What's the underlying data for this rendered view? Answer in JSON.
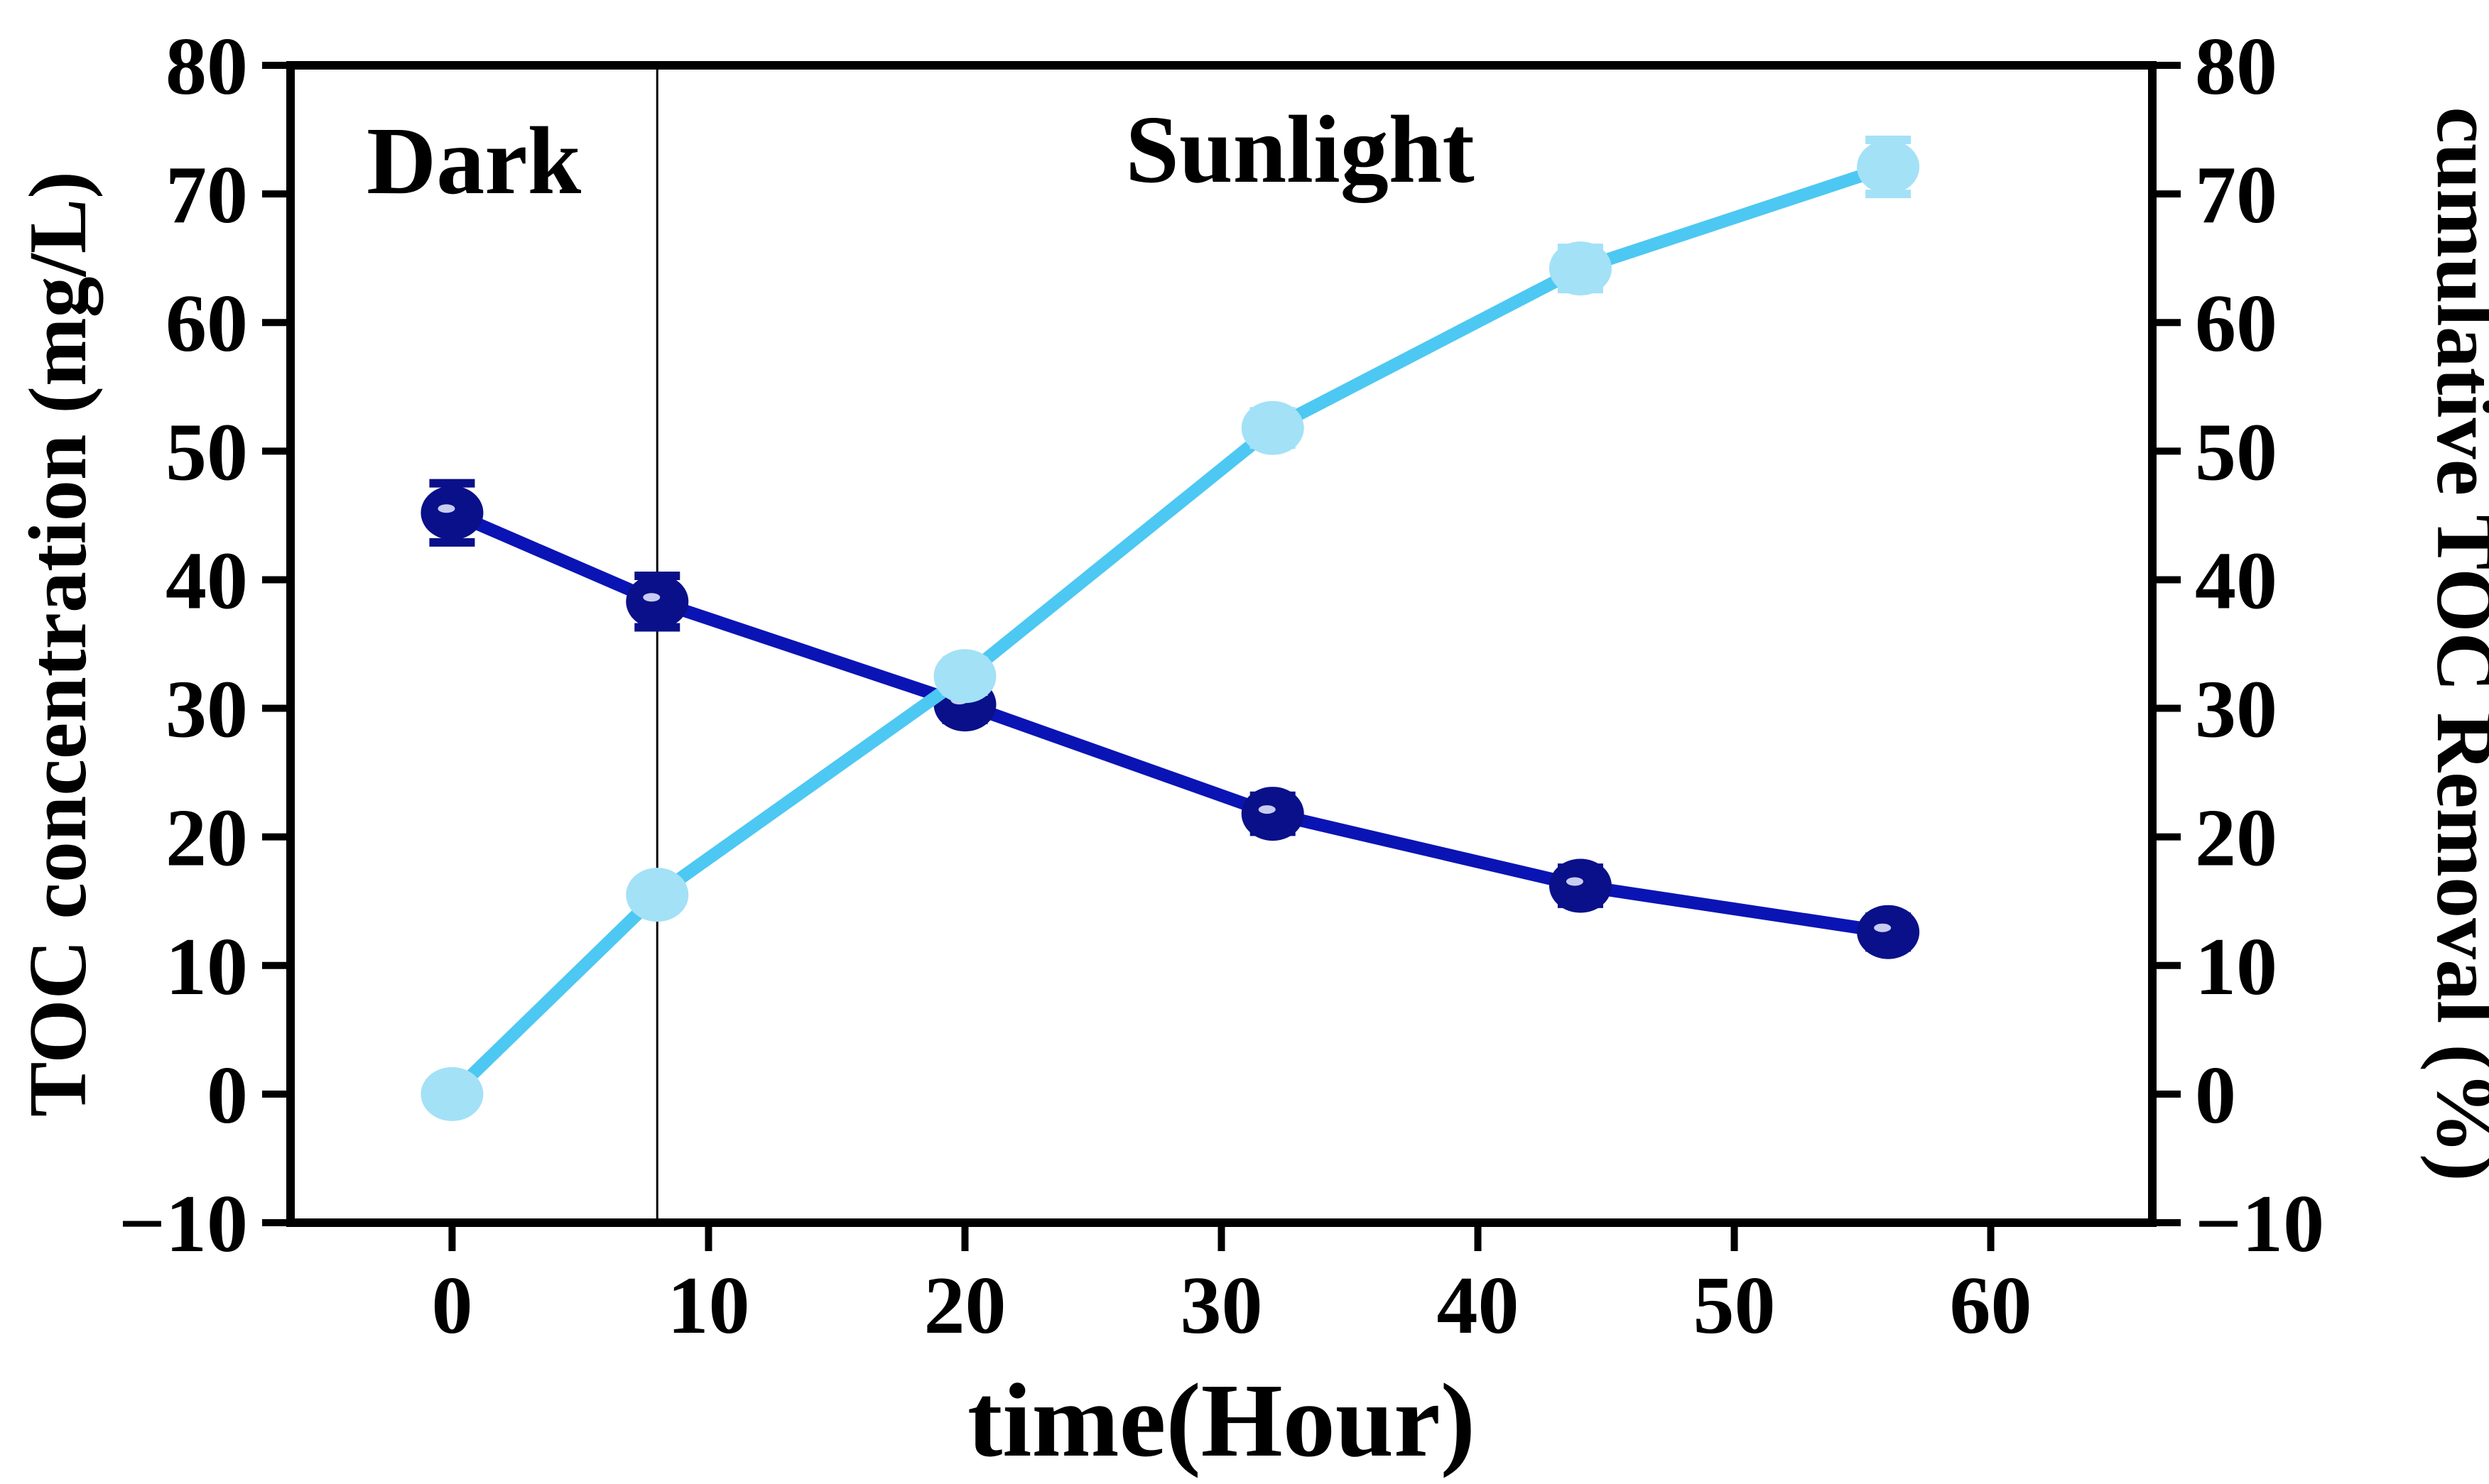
{
  "chart_data": {
    "type": "line",
    "xlabel": "time(Hour)",
    "ylabel_left": "TOC concentration (mg/L)",
    "ylabel_right": "cumulative TOC Removal (%)",
    "xlim": [
      -6.3,
      66.3
    ],
    "ylim": [
      -10,
      80
    ],
    "x_ticks": [
      "0",
      "10",
      "20",
      "30",
      "40",
      "50",
      "60"
    ],
    "y_ticks": [
      "−10",
      "0",
      "10",
      "20",
      "30",
      "40",
      "50",
      "60",
      "70",
      "80"
    ],
    "grid": false,
    "annotations": {
      "dark": "Dark",
      "sunlight": "Sunlight",
      "divider_x": 8
    },
    "series": [
      {
        "axis": "left",
        "color": "#0a14b4",
        "marker_color": "#0a1089",
        "x": [
          0,
          8,
          20,
          32,
          44,
          56
        ],
        "y": [
          45.2,
          38.3,
          30.3,
          21.8,
          16.2,
          12.6
        ],
        "error": [
          2.3,
          2.0,
          1.2,
          1.4,
          1.4,
          1.2
        ]
      },
      {
        "axis": "right",
        "color": "#4dc8f2",
        "marker_color": "#a3e1f7",
        "x": [
          0,
          8,
          20,
          32,
          44,
          56
        ],
        "y": [
          0,
          15.5,
          32.5,
          51.8,
          64.2,
          72.1
        ],
        "error": [
          0,
          0.9,
          1.2,
          1.3,
          1.6,
          2.1
        ]
      }
    ]
  }
}
